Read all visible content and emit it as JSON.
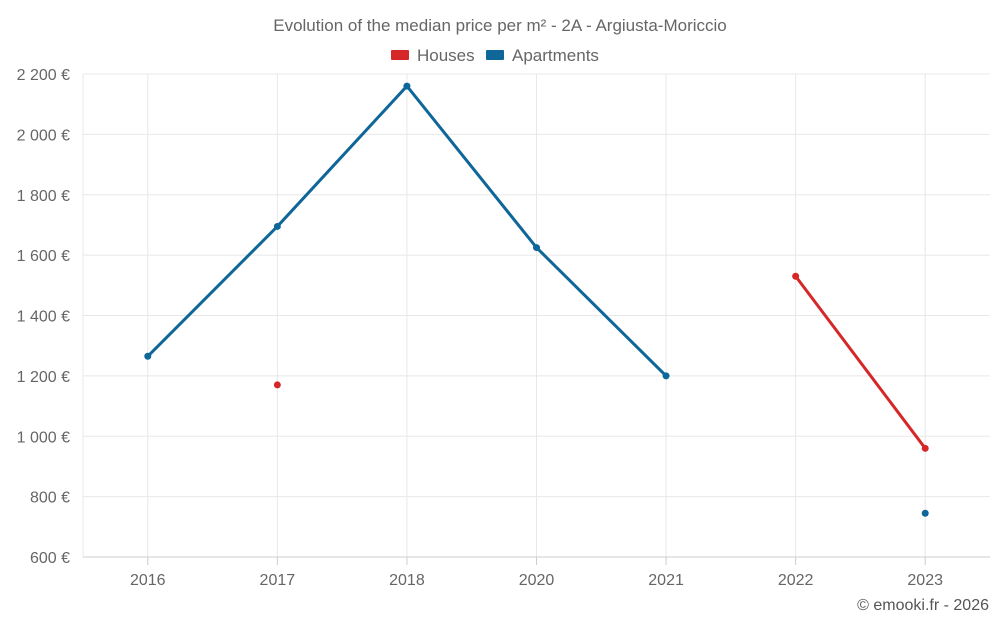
{
  "chart_data": {
    "type": "line",
    "title": "Evolution of the median price per m² - 2A - Argiusta-Moriccio",
    "categories": [
      "2016",
      "2017",
      "2018",
      "2020",
      "2021",
      "2022",
      "2023"
    ],
    "yticks": [
      "600 €",
      "800 €",
      "1 000 €",
      "1 200 €",
      "1 400 €",
      "1 600 €",
      "1 800 €",
      "2 000 €",
      "2 200 €"
    ],
    "ylim": [
      600,
      2200
    ],
    "grid": true,
    "legend_position": "top",
    "series": [
      {
        "name": "Houses",
        "color": "#d62728",
        "values": [
          null,
          1170,
          null,
          null,
          null,
          1530,
          960
        ]
      },
      {
        "name": "Apartments",
        "color": "#0e6699",
        "values": [
          1265,
          1695,
          2160,
          1625,
          1200,
          null,
          745
        ]
      }
    ]
  },
  "credit": "© emooki.fr - 2026"
}
